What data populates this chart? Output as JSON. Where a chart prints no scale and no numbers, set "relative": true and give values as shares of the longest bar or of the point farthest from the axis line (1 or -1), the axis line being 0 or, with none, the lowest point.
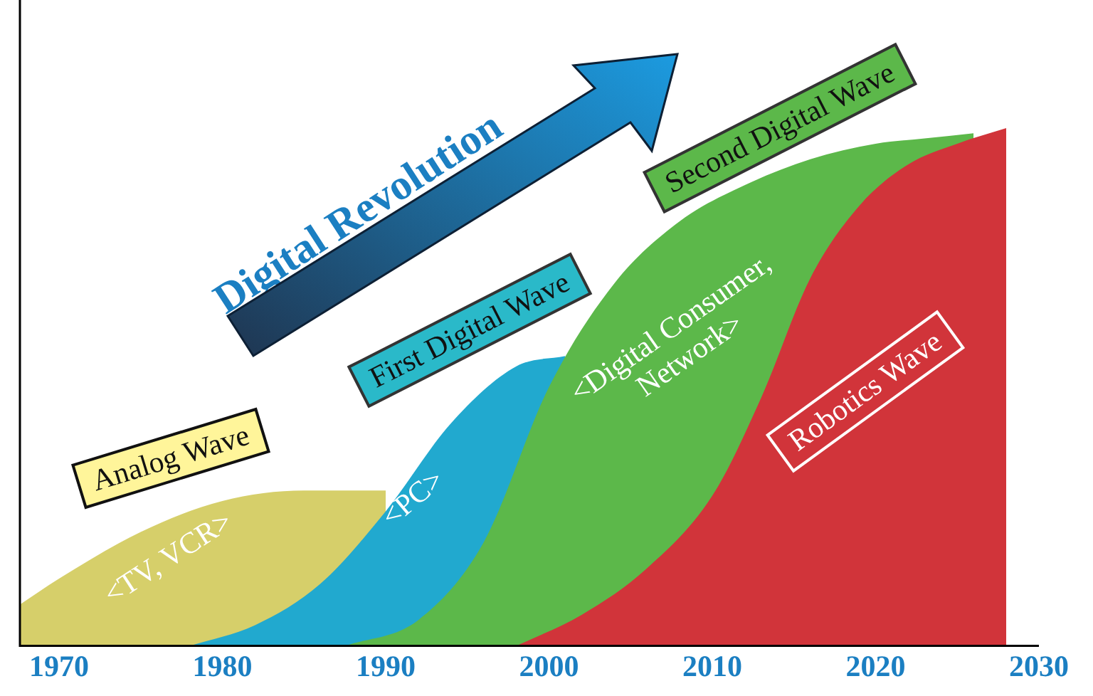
{
  "chart_data": {
    "type": "area",
    "relative": true,
    "xlim": [
      1967.6,
      2030
    ],
    "xticks": [
      1970,
      1980,
      1990,
      2000,
      2010,
      2020,
      2030
    ],
    "grid": false,
    "legend": false,
    "marker": "none",
    "series": [
      {
        "name": "Analog Wave",
        "color": "#d6cf6a",
        "x": [
          1967.6,
          1970,
          1975,
          1980,
          1985,
          1990
        ],
        "values": [
          0.08,
          0.13,
          0.22,
          0.28,
          0.3,
          0.3
        ]
      },
      {
        "name": "First Digital Wave",
        "color": "#21a9cf",
        "x": [
          1978,
          1982,
          1986,
          1990,
          1994,
          1998,
          2001
        ],
        "values": [
          0,
          0.04,
          0.12,
          0.26,
          0.43,
          0.54,
          0.56
        ]
      },
      {
        "name": "Second Digital Wave",
        "color": "#5cb84a",
        "x": [
          1987.5,
          1992,
          1996,
          2000,
          2004,
          2008,
          2012,
          2016,
          2020,
          2023,
          2026
        ],
        "values": [
          0,
          0.05,
          0.2,
          0.5,
          0.7,
          0.82,
          0.89,
          0.94,
          0.97,
          0.98,
          0.99
        ]
      },
      {
        "name": "Robotics Wave",
        "color": "#d1343a",
        "x": [
          1998,
          2002,
          2006,
          2010,
          2013,
          2016,
          2019,
          2022,
          2025,
          2028
        ],
        "values": [
          0,
          0.06,
          0.15,
          0.29,
          0.48,
          0.71,
          0.85,
          0.93,
          0.97,
          1
        ]
      }
    ],
    "annotations": [
      "Digital Revolution",
      "<TV, VCR>",
      "<PC>",
      "<Digital Consumer, Network>"
    ]
  }
}
